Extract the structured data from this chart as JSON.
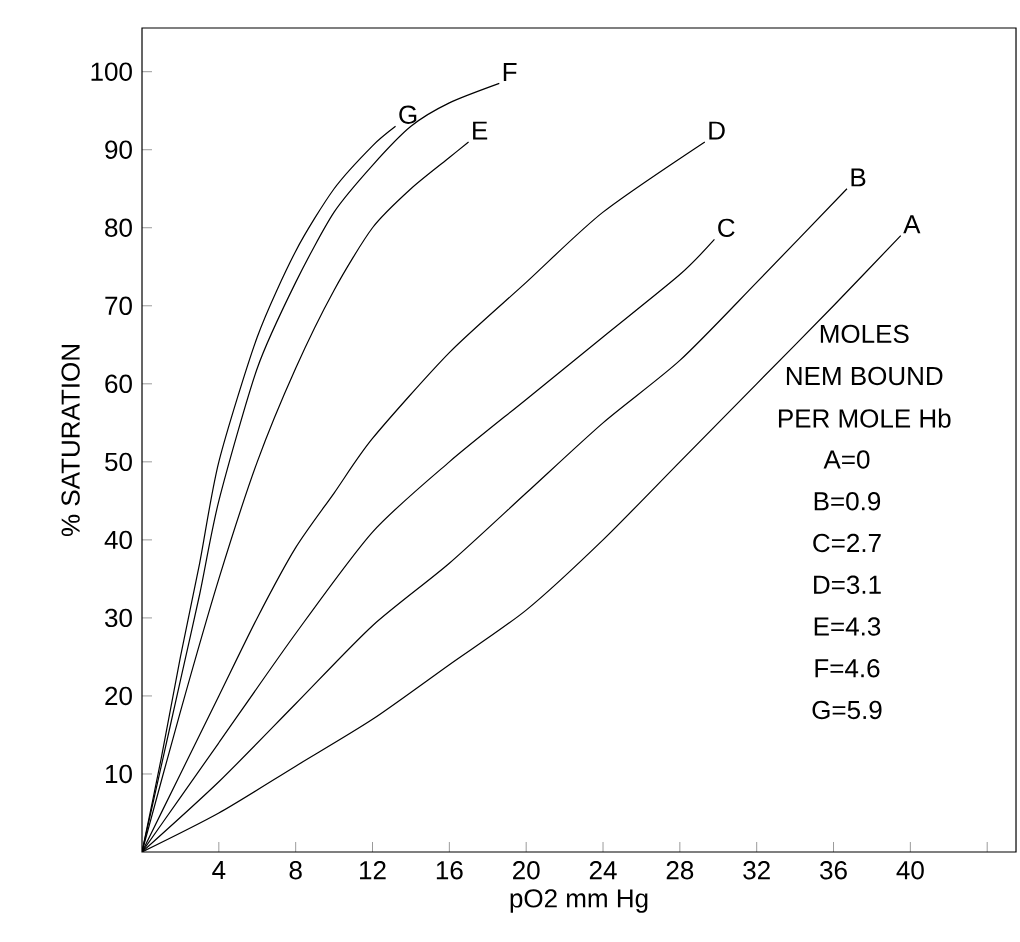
{
  "chart_data": {
    "type": "line",
    "xlabel": "pO2 mm Hg",
    "ylabel": "% SATURATION",
    "xlim": [
      0,
      45.5
    ],
    "ylim": [
      0,
      105.6
    ],
    "xticks": [
      4,
      8,
      12,
      16,
      20,
      24,
      28,
      32,
      36,
      40,
      {
        "value": 44,
        "label": null
      }
    ],
    "yticks": [
      10,
      20,
      30,
      40,
      50,
      60,
      70,
      80,
      90,
      100
    ],
    "grid": false,
    "legend": false,
    "marker": "none",
    "line_style": "solid",
    "series": [
      {
        "name": "G",
        "color": "#000000",
        "x": [
          0,
          1,
          2,
          3,
          4,
          6,
          8,
          10,
          12,
          13.2
        ],
        "values": [
          0,
          12,
          25,
          37,
          50,
          66,
          77,
          85,
          90.5,
          93
        ]
      },
      {
        "name": "F",
        "color": "#000000",
        "x": [
          0,
          1,
          2,
          3,
          4,
          6,
          8,
          10,
          12,
          14,
          16,
          18.6
        ],
        "values": [
          0,
          11,
          22,
          33,
          45,
          62,
          73,
          82,
          88,
          93,
          96,
          98.5
        ]
      },
      {
        "name": "E",
        "color": "#000000",
        "x": [
          0,
          2,
          4,
          6,
          8,
          10,
          12,
          14,
          16,
          17
        ],
        "values": [
          0,
          18,
          35,
          50,
          62,
          72,
          80,
          85,
          89,
          91
        ]
      },
      {
        "name": "D",
        "color": "#000000",
        "x": [
          0,
          2,
          4,
          6,
          8,
          10,
          12,
          16,
          20,
          24,
          29.3
        ],
        "values": [
          0,
          10,
          20,
          30,
          39,
          46,
          53,
          64,
          73,
          82,
          91
        ]
      },
      {
        "name": "C",
        "color": "#000000",
        "x": [
          0,
          2,
          4,
          8,
          12,
          16,
          20,
          24,
          28,
          29.8
        ],
        "values": [
          0,
          7,
          14,
          28,
          41,
          50,
          58,
          66,
          74,
          78.5
        ]
      },
      {
        "name": "B",
        "color": "#000000",
        "x": [
          0,
          4,
          8,
          12,
          16,
          20,
          24,
          28,
          32,
          36.7
        ],
        "values": [
          0,
          9,
          19,
          29,
          37,
          46,
          55,
          63,
          73,
          85
        ]
      },
      {
        "name": "A",
        "color": "#000000",
        "x": [
          0,
          4,
          8,
          12,
          16,
          20,
          24,
          28,
          32,
          36,
          39.5
        ],
        "values": [
          0,
          5,
          11,
          17,
          24,
          31,
          40,
          50,
          60,
          70,
          79
        ]
      }
    ],
    "annotations": [
      "MOLES",
      "NEM BOUND",
      "PER MOLE Hb",
      "A=0",
      "B=0.9",
      "C=2.7",
      "D=3.1",
      "E=4.3",
      "F=4.6",
      "G=5.9"
    ]
  }
}
